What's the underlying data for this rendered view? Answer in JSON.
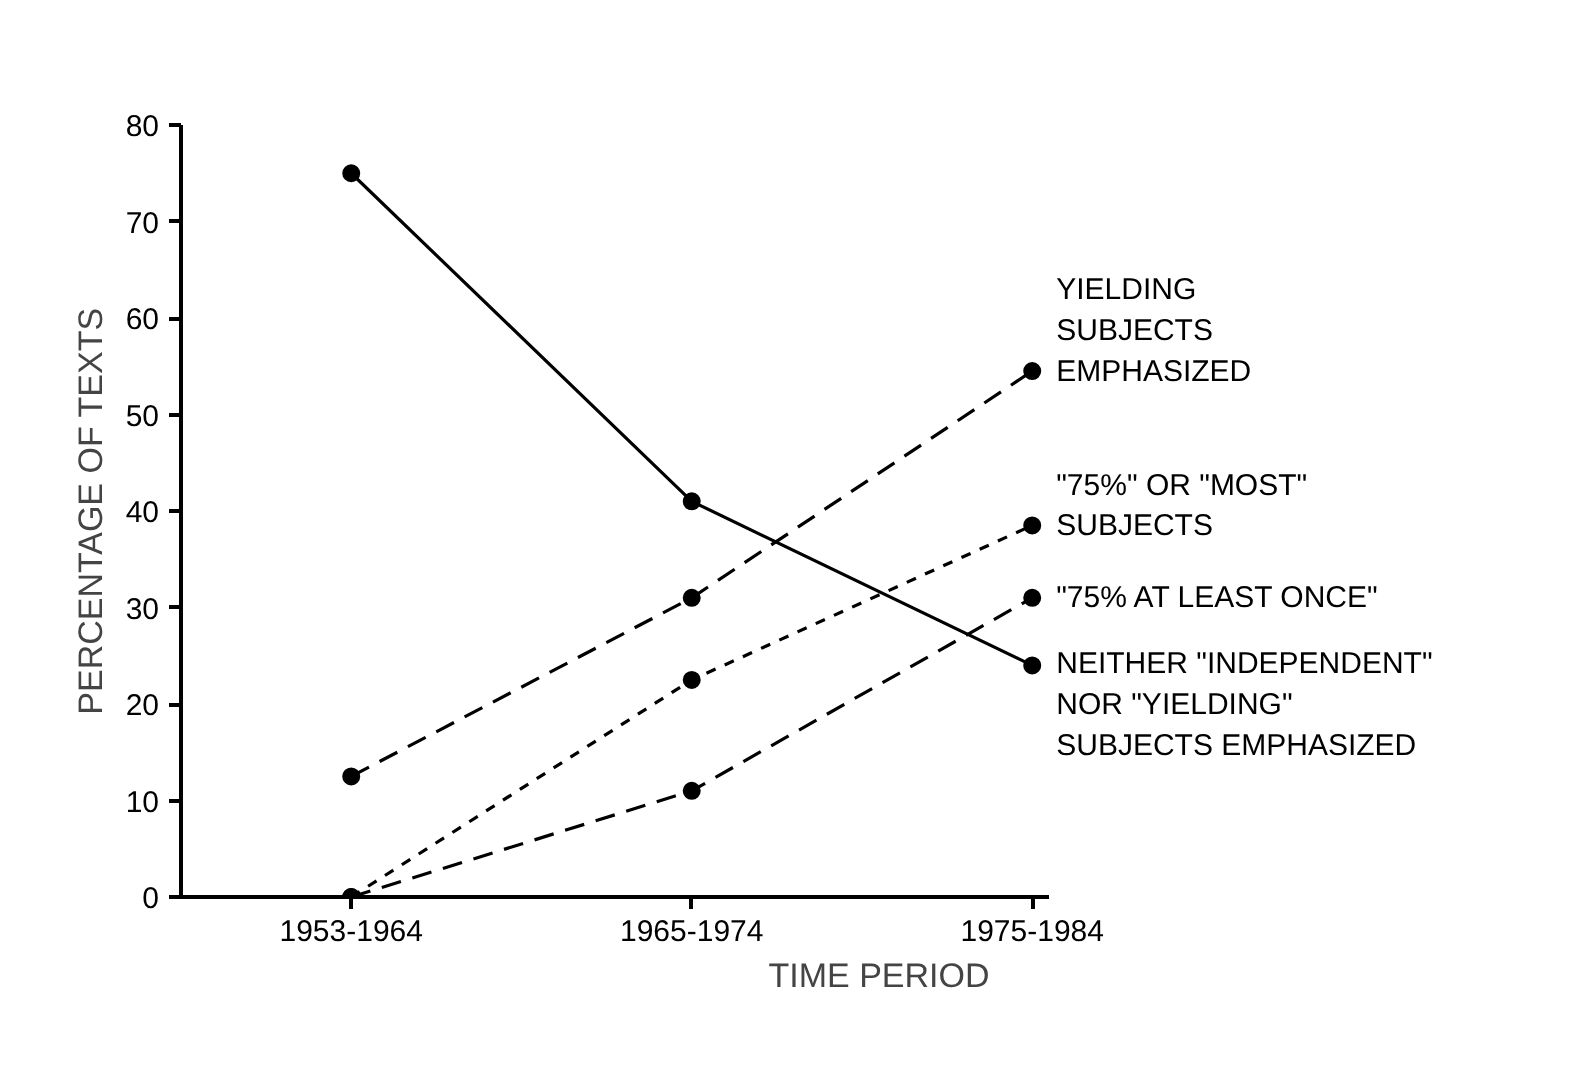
{
  "chart_data": {
    "type": "line",
    "xlabel": "TIME PERIOD",
    "ylabel": "PERCENTAGE OF TEXTS",
    "categories": [
      "1953-1964",
      "1965-1974",
      "1975-1984"
    ],
    "series": [
      {
        "name": "YIELDING\nSUBJECTS\nEMPHASIZED",
        "color": "#000000",
        "values": [
          12.5,
          31,
          54.5
        ],
        "line_style": "dashed"
      },
      {
        "name": "\"75%\" OR \"MOST\"\nSUBJECTS",
        "color": "#000000",
        "values": [
          0,
          22.5,
          38.5
        ],
        "line_style": "dotted"
      },
      {
        "name": "\"75% AT LEAST ONCE\"",
        "color": "#000000",
        "values": [
          0,
          11,
          31
        ],
        "line_style": "dashed"
      },
      {
        "name": "NEITHER \"INDEPENDENT\"\nNOR \"YIELDING\"\nSUBJECTS EMPHASIZED",
        "color": "#000000",
        "values": [
          75,
          41,
          24
        ],
        "line_style": "solid"
      }
    ],
    "ylim": [
      0,
      80
    ],
    "yticks": [
      0,
      10,
      20,
      30,
      40,
      50,
      60,
      70,
      80
    ],
    "marker": "circle",
    "grid": false
  }
}
